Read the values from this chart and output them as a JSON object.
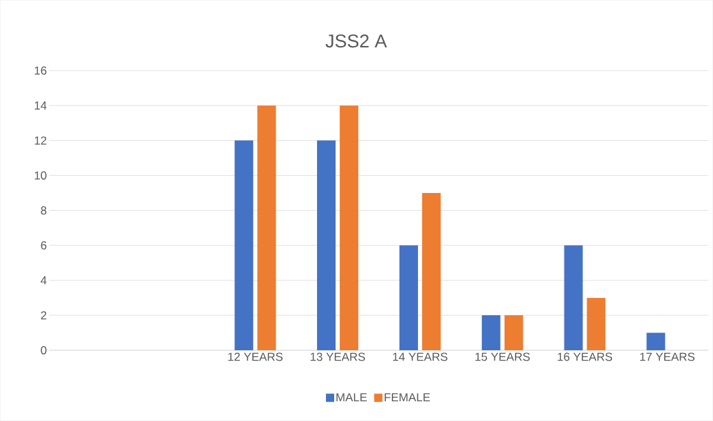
{
  "chart_data": {
    "type": "bar",
    "title": "JSS2 A",
    "categories": [
      null,
      null,
      "12 YEARS",
      "13 YEARS",
      "14 YEARS",
      "15 YEARS",
      "16 YEARS",
      "17 YEARS"
    ],
    "series": [
      {
        "name": "MALE",
        "color": "#4472c4",
        "values": [
          null,
          null,
          12,
          12,
          6,
          2,
          6,
          1
        ]
      },
      {
        "name": "FEMALE",
        "color": "#ed7d31",
        "values": [
          null,
          null,
          14,
          14,
          9,
          2,
          3,
          null
        ]
      }
    ],
    "ylim": [
      0,
      16
    ],
    "yticks": [
      0,
      2,
      4,
      6,
      8,
      10,
      12,
      14,
      16
    ],
    "grid": "y",
    "legend": "bottom"
  }
}
